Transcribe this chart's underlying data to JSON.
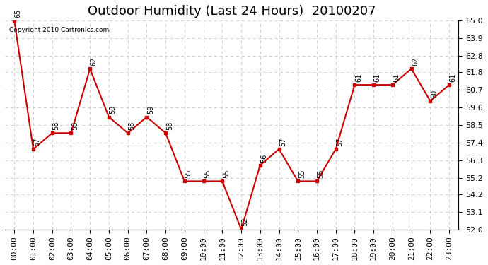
{
  "title": "Outdoor Humidity (Last 24 Hours)  20100207",
  "copyright_text": "Copyright 2010 Cartronics.com",
  "hours": [
    "00:00",
    "01:00",
    "02:00",
    "03:00",
    "04:00",
    "05:00",
    "06:00",
    "07:00",
    "08:00",
    "09:00",
    "10:00",
    "11:00",
    "12:00",
    "13:00",
    "14:00",
    "15:00",
    "16:00",
    "17:00",
    "18:00",
    "19:00",
    "20:00",
    "21:00",
    "22:00",
    "23:00"
  ],
  "values": [
    65,
    57,
    58,
    58,
    62,
    59,
    58,
    59,
    58,
    55,
    55,
    55,
    52,
    56,
    57,
    55,
    55,
    57,
    61,
    61,
    61,
    62,
    60,
    61
  ],
  "labels": [
    "65",
    "57",
    "58",
    "58",
    "62",
    "59",
    "58",
    "59",
    "58",
    "55",
    "55",
    "55",
    "52",
    "56",
    "57",
    "55",
    "55",
    "57",
    "61",
    "61",
    "61",
    "62",
    "60",
    "61"
  ],
  "line_color": "#cc0000",
  "marker_color": "#cc0000",
  "bg_color": "#ffffff",
  "grid_color": "#cccccc",
  "ylim_min": 52.0,
  "ylim_max": 65.0,
  "yticks": [
    52.0,
    53.1,
    54.2,
    55.2,
    56.3,
    57.4,
    58.5,
    59.6,
    60.7,
    61.8,
    62.8,
    63.9,
    65.0
  ],
  "title_fontsize": 13,
  "label_fontsize": 7,
  "tick_fontsize": 8
}
